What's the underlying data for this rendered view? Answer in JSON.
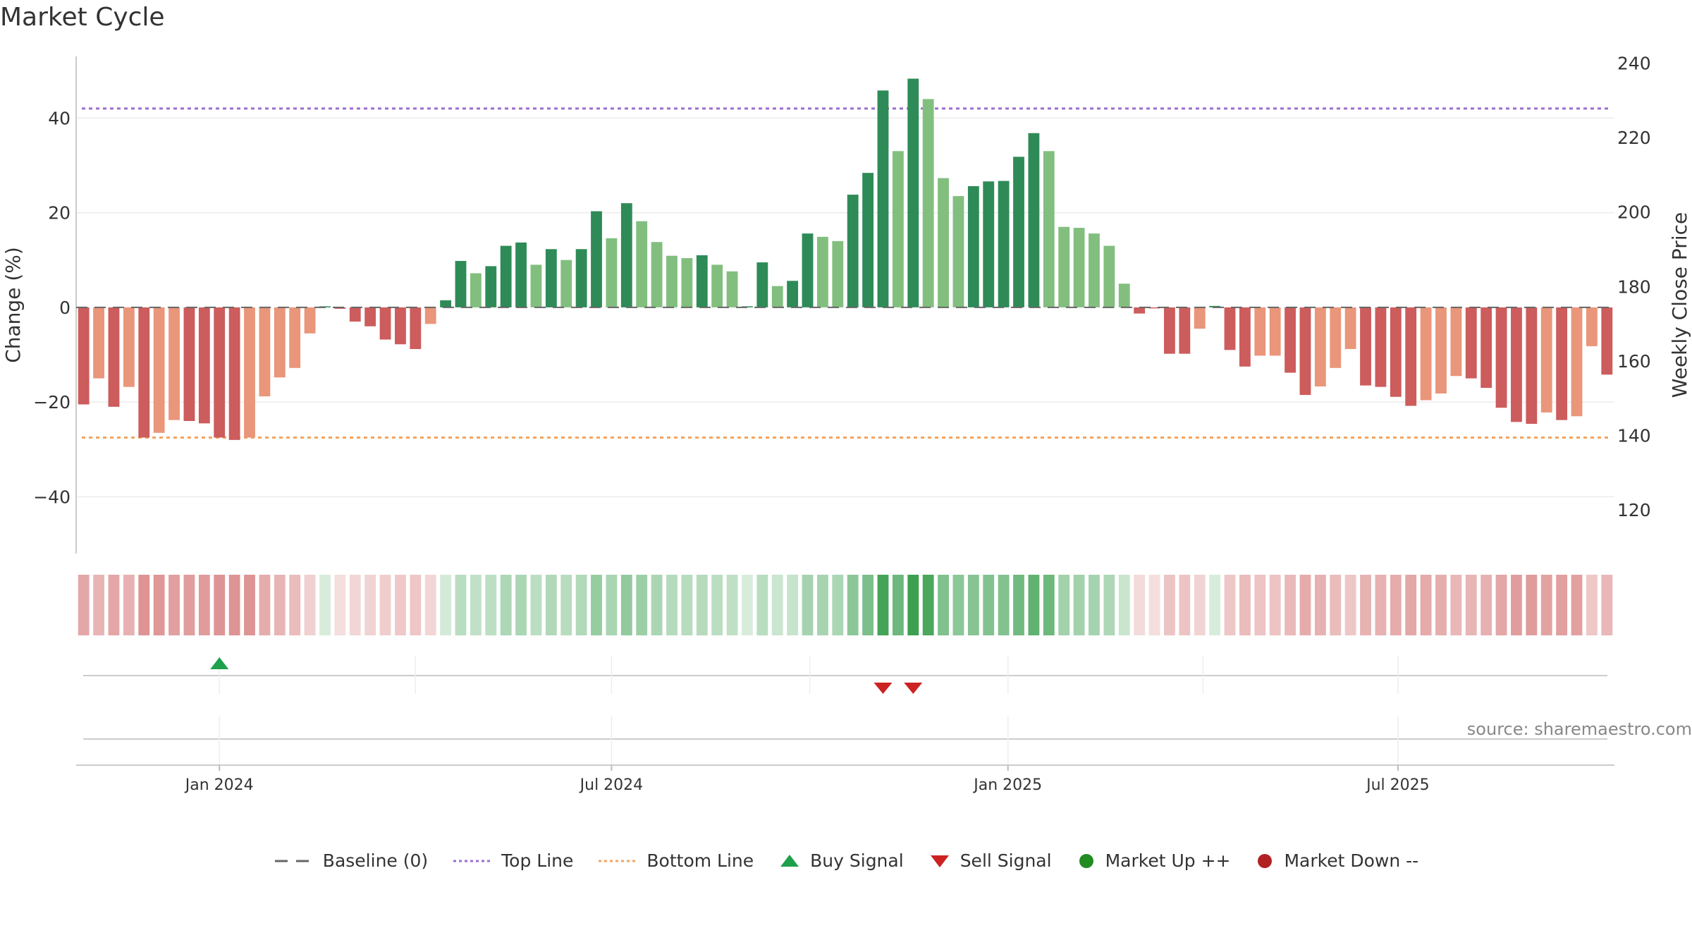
{
  "title": "Market Cycle",
  "source": "source: sharemaestro.com",
  "colors": {
    "bar_up_strong": "#2e8b57",
    "bar_up_light": "#82bf7f",
    "bar_down_strong": "#cd5c5c",
    "bar_down_light": "#e9967a",
    "top_line": "#9b6fcf",
    "bottom_line": "#f4a460",
    "baseline": "#666666",
    "buy": "#1fa04a",
    "sell": "#cc2222",
    "market_up": "#228b22",
    "market_down": "#b22222"
  },
  "chart_data": {
    "type": "bar",
    "title": "Market Cycle",
    "ylabel": "Change (%)",
    "y2label": "Weekly Close Price",
    "ylim": [
      -52,
      53
    ],
    "y2lim": [
      108.3,
      241.8
    ],
    "yticks": [
      40,
      20,
      0,
      -20,
      -40
    ],
    "yticks_labels": [
      "40",
      "20",
      "0",
      "−20",
      "−40"
    ],
    "y2ticks": [
      240,
      220,
      200,
      180,
      160,
      140,
      120
    ],
    "y2ticks_labels": [
      "240",
      "220",
      "200",
      "180",
      "160",
      "140",
      "120"
    ],
    "x_start": "2023-10-30",
    "x_interval": "weekly",
    "xticks": [
      {
        "date": "2024-01-01",
        "label": "Jan 2024"
      },
      {
        "date": "2024-07-01",
        "label": "Jul 2024"
      },
      {
        "date": "2025-01-01",
        "label": "Jan 2025"
      },
      {
        "date": "2025-07-01",
        "label": "Jul 2025"
      }
    ],
    "top_line": 42,
    "bottom_line": -27.5,
    "values": [
      -20.5,
      -15,
      -21,
      -16.8,
      -27.5,
      -26.5,
      -23.8,
      -24,
      -24.5,
      -27.5,
      -28,
      -27.5,
      -18.8,
      -14.8,
      -12.8,
      -5.5,
      0,
      -0.3,
      -3,
      -4,
      -6.8,
      -7.8,
      -8.8,
      -3.5,
      1.5,
      9.8,
      7.2,
      8.7,
      13,
      13.7,
      9,
      12.3,
      10,
      12.3,
      20.3,
      14.6,
      22,
      18.2,
      13.8,
      10.9,
      10.4,
      11,
      9,
      7.6,
      0,
      9.5,
      4.5,
      5.6,
      15.6,
      14.9,
      14,
      23.8,
      28.4,
      45.8,
      33,
      48.3,
      44,
      27.3,
      23.5,
      25.6,
      26.6,
      26.7,
      31.8,
      36.8,
      33,
      17,
      16.8,
      15.6,
      13,
      5,
      -1.3,
      -0.2,
      -9.8,
      -9.8,
      -4.5,
      0.3,
      -9,
      -12.5,
      -10.2,
      -10.2,
      -13.8,
      -18.5,
      -16.7,
      -12.8,
      -8.8,
      -16.5,
      -16.8,
      -18.9,
      -20.8,
      -19.6,
      -18.2,
      -14.5,
      -15,
      -17,
      -21.2,
      -24.2,
      -24.6,
      -22.2,
      -23.8,
      -23,
      -8.2,
      -14.2
    ],
    "bar_intensity": [
      "strong",
      "light",
      "strong",
      "light",
      "strong",
      "light",
      "light",
      "strong",
      "strong",
      "strong",
      "strong",
      "light",
      "light",
      "light",
      "light",
      "light",
      "strong",
      "strong",
      "strong",
      "strong",
      "strong",
      "strong",
      "strong",
      "light",
      "strong",
      "strong",
      "light",
      "strong",
      "strong",
      "strong",
      "light",
      "strong",
      "light",
      "strong",
      "strong",
      "light",
      "strong",
      "light",
      "light",
      "light",
      "light",
      "strong",
      "light",
      "light",
      "strong",
      "strong",
      "light",
      "strong",
      "strong",
      "light",
      "light",
      "strong",
      "strong",
      "strong",
      "light",
      "strong",
      "light",
      "light",
      "light",
      "strong",
      "strong",
      "strong",
      "strong",
      "strong",
      "light",
      "light",
      "light",
      "light",
      "light",
      "light",
      "strong",
      "strong",
      "strong",
      "strong",
      "light",
      "strong",
      "strong",
      "strong",
      "light",
      "light",
      "strong",
      "strong",
      "light",
      "light",
      "light",
      "strong",
      "strong",
      "strong",
      "strong",
      "light",
      "light",
      "light",
      "strong",
      "strong",
      "strong",
      "strong",
      "strong",
      "light",
      "strong",
      "light",
      "light",
      "strong"
    ],
    "buy_signals": [
      {
        "index": 9
      }
    ],
    "sell_signals": [
      {
        "index": 53
      },
      {
        "index": 55
      }
    ],
    "legend_position": "bottom-center",
    "grid": true
  },
  "legend": [
    {
      "key": "baseline",
      "label": "Baseline (0)"
    },
    {
      "key": "top",
      "label": "Top Line"
    },
    {
      "key": "bottom",
      "label": "Bottom Line"
    },
    {
      "key": "buy",
      "label": "Buy Signal"
    },
    {
      "key": "sell",
      "label": "Sell Signal"
    },
    {
      "key": "up",
      "label": "Market Up ++"
    },
    {
      "key": "down",
      "label": "Market Down --"
    }
  ]
}
